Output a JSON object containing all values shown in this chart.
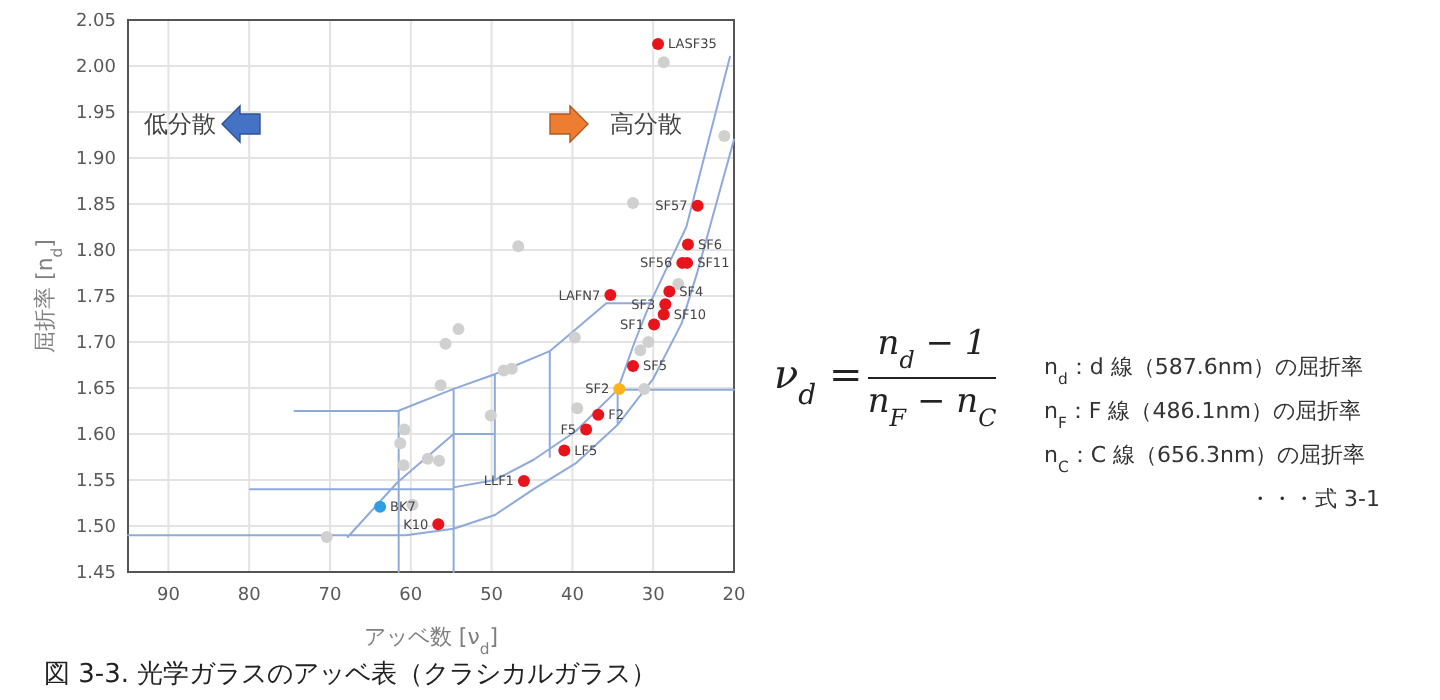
{
  "chart_data": {
    "type": "scatter",
    "title": "図 3-3. 光学ガラスのアッベ表（クラシカルガラス）",
    "xlabel": "アッベ数 [ν$_{d}$]",
    "ylabel": "屈折率 [n$_{d}$]",
    "xlim": [
      95,
      20
    ],
    "xticks": [
      90,
      80,
      70,
      60,
      50,
      40,
      30,
      20
    ],
    "ylim": [
      1.45,
      2.05
    ],
    "yticks": [
      1.45,
      {
        "value": 1.5,
        "label": "1.50"
      },
      1.55,
      {
        "value": 1.6,
        "label": "1.60"
      },
      1.65,
      {
        "value": 1.7,
        "label": "1.70"
      },
      1.75,
      {
        "value": 1.8,
        "label": "1.80"
      },
      1.85,
      {
        "value": 1.9,
        "label": "1.90"
      },
      1.95,
      {
        "value": 2.0,
        "label": "2.00"
      },
      2.05
    ],
    "grid": true,
    "series": [
      {
        "type": "line",
        "color": "#8eaadb",
        "x": [
          95,
          60.6,
          null,
          67.8,
          61.7,
          54.7,
          49.6,
          null,
          79.9,
          54.7,
          null,
          54.7,
          49.6,
          44.8,
          39.6,
          34.4,
          32.3,
          30.4,
          25.9,
          20.5,
          null,
          60.6,
          54.7,
          49.6,
          44.8,
          39.6,
          34.4,
          30,
          26.5,
          24.6,
          20,
          null,
          74.4,
          61.6,
          54.7,
          49.6,
          42.8,
          35.8,
          30.4,
          null,
          61.5,
          61.5,
          null,
          54.7,
          54.7,
          null,
          49.6,
          49.6,
          null,
          42.8,
          42.8,
          null,
          34.4,
          34.4,
          20
        ],
        "values": [
          1.49,
          1.49,
          null,
          1.488,
          1.547,
          1.6,
          1.6,
          null,
          1.54,
          1.54,
          null,
          1.542,
          1.55,
          1.572,
          1.603,
          1.648,
          1.7,
          1.742,
          1.825,
          2.01,
          null,
          1.49,
          1.497,
          1.512,
          1.54,
          1.568,
          1.61,
          1.66,
          1.72,
          1.774,
          1.92,
          null,
          1.625,
          1.625,
          1.649,
          1.665,
          1.69,
          1.742,
          1.742,
          null,
          1.45,
          1.625,
          null,
          1.45,
          1.649,
          null,
          1.55,
          1.665,
          null,
          1.575,
          1.69,
          null,
          1.61,
          1.648,
          1.648
        ]
      },
      {
        "marker": "circle",
        "color": "#d0d0d0",
        "x": [
          28.7,
          21.2,
          32.5,
          46.7,
          26.9,
          54.1,
          55.7,
          39.7,
          30.6,
          31.6,
          56.3,
          48.5,
          47.5,
          31.1,
          39.4,
          50.1,
          60.8,
          61.3,
          57.9,
          56.5,
          60.9,
          59.8,
          70.4
        ],
        "values": [
          2.004,
          1.924,
          1.851,
          1.804,
          1.763,
          1.714,
          1.698,
          1.705,
          1.7,
          1.691,
          1.653,
          1.669,
          1.671,
          1.649,
          1.628,
          1.62,
          1.605,
          1.59,
          1.573,
          1.571,
          1.566,
          1.523,
          1.488
        ]
      },
      {
        "marker": "circle",
        "color": "#e8141c",
        "x": [
          29.4,
          24.5,
          25.7,
          26.4,
          25.8,
          35.3,
          28,
          28.5,
          28.7,
          29.9,
          32.5,
          36.8,
          38.3,
          41,
          46,
          56.6
        ],
        "values": [
          2.024,
          1.848,
          1.806,
          1.786,
          1.786,
          1.751,
          1.755,
          1.741,
          1.73,
          1.719,
          1.674,
          1.621,
          1.605,
          1.582,
          1.549,
          1.502
        ]
      },
      {
        "marker": "circle",
        "color": "#ffb31a",
        "x": [
          34.2
        ],
        "values": [
          1.649
        ]
      },
      {
        "marker": "circle",
        "color": "#2e9ee6",
        "x": [
          63.8
        ],
        "values": [
          1.521
        ]
      }
    ],
    "annotations": [
      "低分散",
      "高分散",
      "ν$_{d}$ =",
      "n$_{d}$ − 1",
      "n$_{F}$ − n$_{C}$",
      "n$_{d}$：d 線（587.6nm）の屈折率",
      "n$_{F}$：F 線（486.1nm）の屈折率",
      "n$_{C}$：C 線（656.3nm）の屈折率",
      "・・・式 3-1",
      {
        "text": "LASF35",
        "x": 29.4,
        "y": 2.024
      },
      {
        "text": "SF57",
        "x": 24.5,
        "y": 1.848
      },
      {
        "text": "SF6",
        "x": 25.7,
        "y": 1.806
      },
      {
        "text": "SF56",
        "x": 26.4,
        "y": 1.786
      },
      {
        "text": "SF11",
        "x": 25.8,
        "y": 1.786
      },
      {
        "text": "LAFN7",
        "x": 35.3,
        "y": 1.751
      },
      {
        "text": "SF4",
        "x": 28,
        "y": 1.755
      },
      {
        "text": "SF3",
        "x": 28.5,
        "y": 1.741
      },
      {
        "text": "SF10",
        "x": 28.7,
        "y": 1.73
      },
      {
        "text": "SF1",
        "x": 29.9,
        "y": 1.719
      },
      {
        "text": "SF5",
        "x": 32.5,
        "y": 1.674
      },
      {
        "text": "SF2",
        "x": 34.2,
        "y": 1.649
      },
      {
        "text": "F2",
        "x": 36.8,
        "y": 1.621
      },
      {
        "text": "F5",
        "x": 38.3,
        "y": 1.605
      },
      {
        "text": "LF5",
        "x": 41,
        "y": 1.582
      },
      {
        "text": "LLF1",
        "x": 46,
        "y": 1.549
      },
      {
        "text": "BK7",
        "x": 63.8,
        "y": 1.521
      },
      {
        "text": "K10",
        "x": 56.6,
        "y": 1.502
      }
    ]
  }
}
